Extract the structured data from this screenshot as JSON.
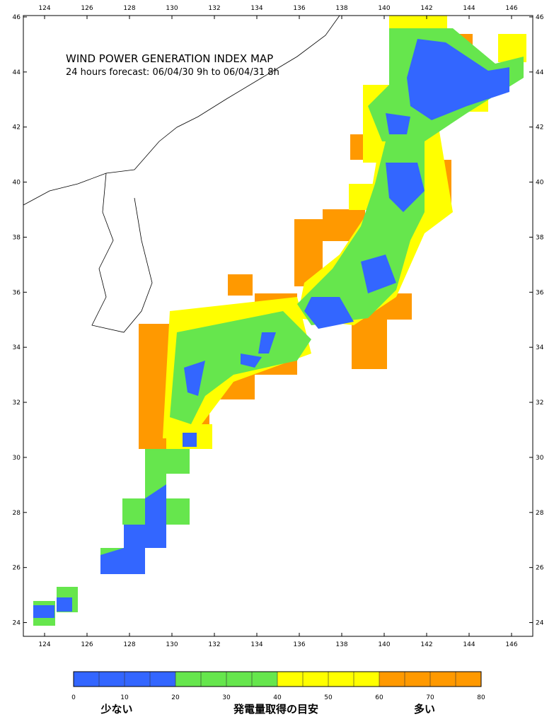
{
  "map": {
    "title": "WIND POWER GENERATION INDEX MAP",
    "subtitle": "24 hours forecast: 06/04/30 9h to 06/04/31 8h",
    "xlim": [
      123,
      147
    ],
    "ylim": [
      23.5,
      46.05
    ],
    "xticks": [
      124,
      126,
      128,
      130,
      132,
      134,
      136,
      138,
      140,
      142,
      144,
      146
    ],
    "yticks": [
      24,
      26,
      28,
      30,
      32,
      34,
      36,
      38,
      40,
      42,
      44,
      46
    ]
  },
  "colorbar": {
    "ticks": [
      0,
      10,
      20,
      30,
      40,
      50,
      60,
      70,
      80
    ],
    "colors": [
      "#3366ff",
      "#66e64d",
      "#ffff00",
      "#ff9900"
    ],
    "low_label": "少ない",
    "center_label": "発電量取得の目安",
    "high_label": "多い"
  }
}
